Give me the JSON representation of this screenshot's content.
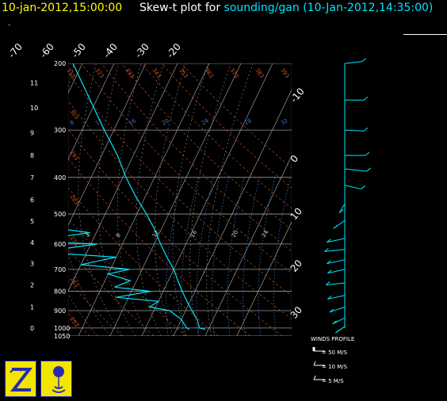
{
  "header": {
    "datetime": "10-jan-2012,15:00:00",
    "title_prefix": "Skew-t plot for",
    "source": "sounding/gan (10-Jan-2012,14:35:00)",
    "dot": "."
  },
  "colors": {
    "header_date": "#ffff00",
    "source_text": "#00e5ff",
    "trace": "#00e5ff",
    "isotherm": "#b0b0b0",
    "isobar": "#9a9a9a",
    "dry_adiabat": "#d4541e",
    "mixing_ratio": "#3a7bd5",
    "moist_adiabat": "#b0b0b0",
    "logo_bg": "#f2e600",
    "logo_border": "#2a2ab0"
  },
  "legend": {
    "title": "WINDS PROFILE",
    "rows": [
      {
        "label": "= 50 M/S"
      },
      {
        "label": "= 10 M/S"
      },
      {
        "label": "= 5 M/S"
      }
    ]
  },
  "logos": [
    {
      "name": "z-logo-icon"
    },
    {
      "name": "sonde-balloon-icon"
    }
  ],
  "chart_data": {
    "type": "skew-t",
    "pressure_levels_hpa": [
      200,
      300,
      400,
      500,
      600,
      700,
      800,
      900,
      1000,
      1050
    ],
    "pressure_labels": [
      "200",
      "300",
      "400",
      "500",
      "600",
      "700",
      "800",
      "900",
      "1000",
      "1050"
    ],
    "height_km_labels": [
      "11",
      "10",
      "9",
      "8",
      "7",
      "6",
      "5",
      "4",
      "3",
      "2",
      "1",
      "0"
    ],
    "temperature_labels_top": [
      "-70",
      "-60",
      "-50",
      "-40",
      "-30",
      "-20"
    ],
    "temperature_labels_right": [
      "-10",
      "0",
      "10",
      "20",
      "30"
    ],
    "potential_temperature_labels": [
      "313",
      "323",
      "333",
      "343",
      "353",
      "363",
      "373",
      "383",
      "393",
      "303",
      "293",
      "283",
      "273",
      "263",
      "253"
    ],
    "mixing_ratio_labels": [
      "8",
      "12",
      "16",
      "20",
      "24",
      "28",
      "32"
    ],
    "wetbulb_labels": [
      "4",
      "8",
      "12",
      "16",
      "20",
      "24"
    ],
    "temperature_profile": [
      {
        "p": 200,
        "t": -53
      },
      {
        "p": 250,
        "t": -42
      },
      {
        "p": 300,
        "t": -33
      },
      {
        "p": 350,
        "t": -25
      },
      {
        "p": 400,
        "t": -19
      },
      {
        "p": 450,
        "t": -13
      },
      {
        "p": 500,
        "t": -7
      },
      {
        "p": 550,
        "t": -2
      },
      {
        "p": 600,
        "t": 2
      },
      {
        "p": 650,
        "t": 6
      },
      {
        "p": 700,
        "t": 10
      },
      {
        "p": 750,
        "t": 13
      },
      {
        "p": 800,
        "t": 16
      },
      {
        "p": 850,
        "t": 19
      },
      {
        "p": 900,
        "t": 22
      },
      {
        "p": 950,
        "t": 25
      },
      {
        "p": 1000,
        "t": 27
      },
      {
        "p": 1008,
        "t": 29
      }
    ],
    "dewpoint_profile": [
      {
        "p": 200,
        "t": -67
      },
      {
        "p": 220,
        "t": -70
      },
      {
        "p": 250,
        "t": -68
      },
      {
        "p": 280,
        "t": -64
      },
      {
        "p": 300,
        "t": -60
      },
      {
        "p": 320,
        "t": -52
      },
      {
        "p": 350,
        "t": -46
      },
      {
        "p": 370,
        "t": -55
      },
      {
        "p": 400,
        "t": -50
      },
      {
        "p": 420,
        "t": -60
      },
      {
        "p": 450,
        "t": -45
      },
      {
        "p": 480,
        "t": -36
      },
      {
        "p": 500,
        "t": -37
      },
      {
        "p": 530,
        "t": -45
      },
      {
        "p": 560,
        "t": -22
      },
      {
        "p": 590,
        "t": -40
      },
      {
        "p": 600,
        "t": -18
      },
      {
        "p": 630,
        "t": -35
      },
      {
        "p": 650,
        "t": -10
      },
      {
        "p": 680,
        "t": -20
      },
      {
        "p": 700,
        "t": -4
      },
      {
        "p": 720,
        "t": -10
      },
      {
        "p": 750,
        "t": -2
      },
      {
        "p": 780,
        "t": -6
      },
      {
        "p": 800,
        "t": 6
      },
      {
        "p": 830,
        "t": -4
      },
      {
        "p": 850,
        "t": 10
      },
      {
        "p": 880,
        "t": 8
      },
      {
        "p": 900,
        "t": 15
      },
      {
        "p": 950,
        "t": 20
      },
      {
        "p": 1000,
        "t": 23
      },
      {
        "p": 1008,
        "t": 24
      }
    ],
    "wind_profile": [
      {
        "p": 200,
        "speed": 8,
        "dir": 80
      },
      {
        "p": 250,
        "speed": 10,
        "dir": 90
      },
      {
        "p": 300,
        "speed": 10,
        "dir": 95
      },
      {
        "p": 350,
        "speed": 12,
        "dir": 90
      },
      {
        "p": 380,
        "speed": 14,
        "dir": 100
      },
      {
        "p": 420,
        "speed": 8,
        "dir": 110
      },
      {
        "p": 470,
        "speed": 6,
        "dir": 200
      },
      {
        "p": 520,
        "speed": 8,
        "dir": 220
      },
      {
        "p": 580,
        "speed": 10,
        "dir": 250
      },
      {
        "p": 620,
        "speed": 12,
        "dir": 260
      },
      {
        "p": 660,
        "speed": 10,
        "dir": 250
      },
      {
        "p": 700,
        "speed": 9,
        "dir": 250
      },
      {
        "p": 760,
        "speed": 10,
        "dir": 260
      },
      {
        "p": 820,
        "speed": 9,
        "dir": 250
      },
      {
        "p": 880,
        "speed": 8,
        "dir": 240
      },
      {
        "p": 940,
        "speed": 6,
        "dir": 230
      },
      {
        "p": 990,
        "speed": 4,
        "dir": 220
      }
    ]
  }
}
